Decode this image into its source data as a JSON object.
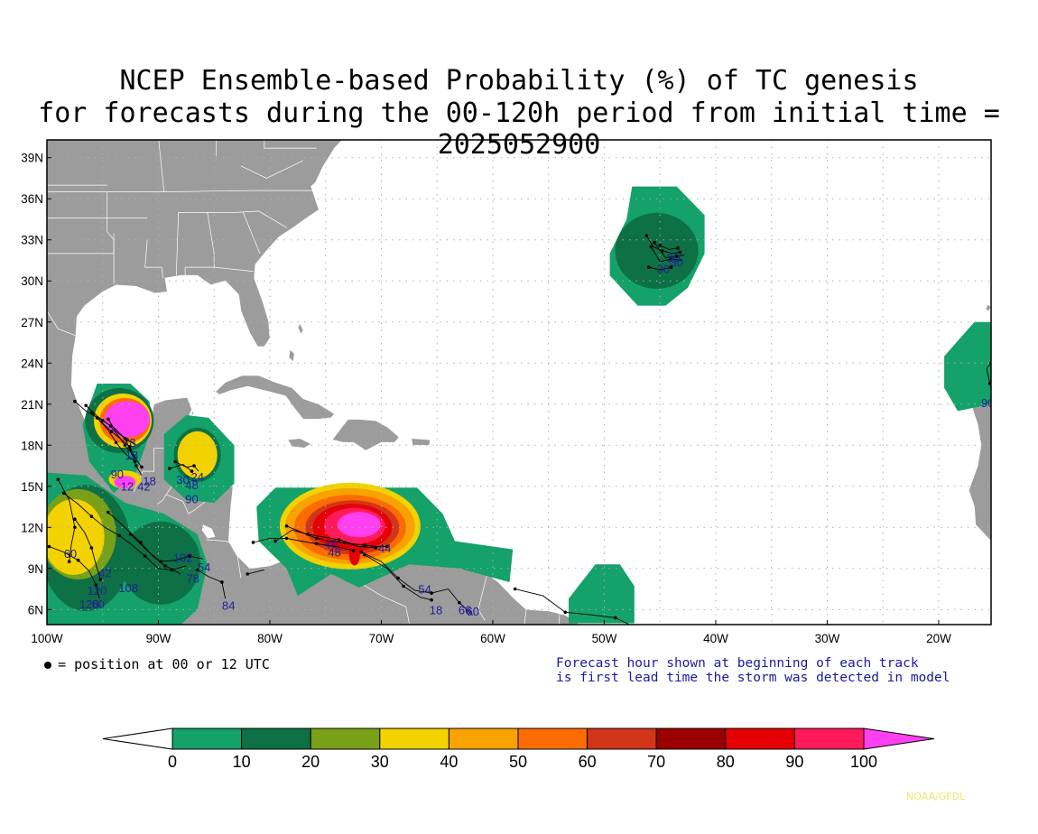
{
  "title": {
    "line1": "NCEP Ensemble-based Probability (%) of TC genesis",
    "line2": "for forecasts during the 00-120h period from initial time = 2025052900"
  },
  "map": {
    "lat_labels": [
      "39N",
      "36N",
      "33N",
      "30N",
      "27N",
      "24N",
      "21N",
      "18N",
      "15N",
      "12N",
      "9N",
      "6N"
    ],
    "lat_values": [
      39,
      36,
      33,
      30,
      27,
      24,
      21,
      18,
      15,
      12,
      9,
      6
    ],
    "lon_labels": [
      "100W",
      "90W",
      "80W",
      "70W",
      "60W",
      "50W",
      "40W",
      "30W",
      "20W"
    ],
    "lon_values": [
      -100,
      -90,
      -80,
      -70,
      -60,
      -50,
      -40,
      -30,
      -20
    ],
    "lon_range": [
      -100,
      -15.3
    ],
    "lat_range": [
      4.9,
      40.3
    ],
    "land_color": "#9c9c9c",
    "grid": true
  },
  "regions": [
    {
      "name": "central-atlantic-genesis",
      "center": [
        -45.2,
        32.2
      ],
      "max_class": "20"
    },
    {
      "name": "east-atlantic-genesis",
      "center": [
        -15.5,
        23.5
      ],
      "max_class": "10"
    },
    {
      "name": "bay-of-campeche-genesis",
      "center": [
        -93.5,
        19.5
      ],
      "max_class": "100"
    },
    {
      "name": "gulf-of-honduras-genesis",
      "center": [
        -87,
        16.5
      ],
      "max_class": "40"
    },
    {
      "name": "southwest-caribbean-genesis",
      "center": [
        -72.5,
        12
      ],
      "max_class": "100"
    },
    {
      "name": "east-pacific-genesis",
      "center": [
        -96,
        11
      ],
      "max_class": "40"
    },
    {
      "name": "guiana-genesis",
      "center": [
        -50,
        7
      ],
      "max_class": "10"
    }
  ],
  "track_labels": [
    {
      "text": "30",
      "lon": -43.8,
      "lat": 31.6
    },
    {
      "text": "30",
      "lon": -43.5,
      "lat": 31.3
    },
    {
      "text": "30",
      "lon": -44.7,
      "lat": 30.8
    },
    {
      "text": "90",
      "lon": -15.6,
      "lat": 21.0
    },
    {
      "text": "78",
      "lon": -92.6,
      "lat": 18.1
    },
    {
      "text": "18",
      "lon": -92.4,
      "lat": 17.2
    },
    {
      "text": "90",
      "lon": -93.7,
      "lat": 15.8
    },
    {
      "text": "42",
      "lon": -91.3,
      "lat": 14.9
    },
    {
      "text": "18",
      "lon": -90.8,
      "lat": 15.3
    },
    {
      "text": "12",
      "lon": -92.8,
      "lat": 14.9
    },
    {
      "text": "24",
      "lon": -86.5,
      "lat": 15.6
    },
    {
      "text": "48",
      "lon": -87.0,
      "lat": 15.0
    },
    {
      "text": "90",
      "lon": -87.0,
      "lat": 14.0
    },
    {
      "text": "30",
      "lon": -87.8,
      "lat": 15.4
    },
    {
      "text": "48",
      "lon": -74.5,
      "lat": 10.7
    },
    {
      "text": "48",
      "lon": -74.2,
      "lat": 10.1
    },
    {
      "text": "44",
      "lon": -69.7,
      "lat": 10.4
    },
    {
      "text": "54",
      "lon": -66.1,
      "lat": 7.4
    },
    {
      "text": "18",
      "lon": -65.1,
      "lat": 5.9
    },
    {
      "text": "66",
      "lon": -62.5,
      "lat": 5.9
    },
    {
      "text": "60",
      "lon": -61.8,
      "lat": 5.8
    },
    {
      "text": "84",
      "lon": -83.7,
      "lat": 6.2
    },
    {
      "text": "102",
      "lon": -87.8,
      "lat": 9.7
    },
    {
      "text": "54",
      "lon": -85.9,
      "lat": 9.0
    },
    {
      "text": "78",
      "lon": -86.9,
      "lat": 8.2
    },
    {
      "text": "108",
      "lon": -92.7,
      "lat": 7.5
    },
    {
      "text": "60",
      "lon": -97.9,
      "lat": 10.0
    },
    {
      "text": "42",
      "lon": -94.8,
      "lat": 8.6
    },
    {
      "text": "120",
      "lon": -95.5,
      "lat": 7.3
    },
    {
      "text": "120",
      "lon": -96.2,
      "lat": 6.3
    },
    {
      "text": "60",
      "lon": -95.4,
      "lat": 6.3
    }
  ],
  "notes": {
    "dot_legend": "= position at 00 or 12 UTC",
    "forecast_note_1": "Forecast hour shown at beginning of each track",
    "forecast_note_2": "is first lead time the storm was detected in model"
  },
  "colorbar": {
    "labels": [
      "0",
      "10",
      "20",
      "30",
      "40",
      "50",
      "60",
      "70",
      "80",
      "90",
      "100"
    ],
    "colors": [
      "#14a16a",
      "#0e7045",
      "#78a018",
      "#f2d200",
      "#f9a200",
      "#fa6c00",
      "#d23519",
      "#9b0000",
      "#e50005",
      "#ff1a5a",
      "#ff40f0"
    ],
    "under_color": "#ffffff"
  },
  "credit": "NOAA/GFDL"
}
